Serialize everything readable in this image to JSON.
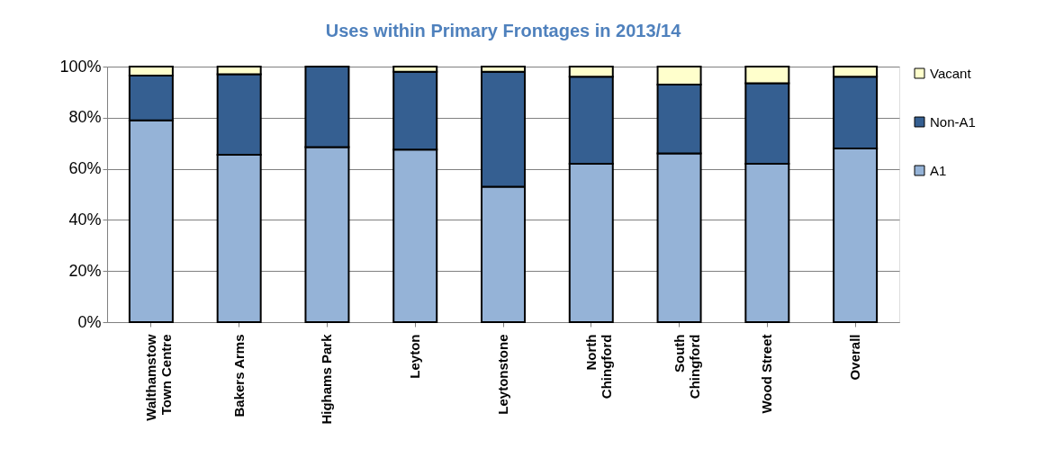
{
  "chart_data": {
    "type": "bar",
    "title": "Uses within Primary Frontages in 2013/14",
    "stacked": true,
    "categories": [
      "Walthamstow\nTown Centre",
      "Bakers Arms",
      "Highams Park",
      "Leyton",
      "Leytonstone",
      "North\nChingford",
      "South\nChingford",
      "Wood Street",
      "Overall"
    ],
    "series": [
      {
        "name": "A1",
        "color": "#95b3d7",
        "values": [
          79,
          65.5,
          68.5,
          67.5,
          53,
          62,
          66,
          62,
          68
        ]
      },
      {
        "name": "Non-A1",
        "color": "#355f91",
        "values": [
          17.5,
          31.5,
          31.5,
          30.5,
          45,
          34,
          27,
          31.5,
          28
        ]
      },
      {
        "name": "Vacant",
        "color": "#ffffcc",
        "values": [
          3.5,
          3,
          null,
          2,
          2,
          4,
          7,
          6.5,
          4
        ]
      }
    ],
    "ylim": [
      0,
      100
    ],
    "yticks": [
      {
        "value": 0,
        "label": "0%"
      },
      {
        "value": 20,
        "label": "20%"
      },
      {
        "value": 40,
        "label": "40%"
      },
      {
        "value": 60,
        "label": "60%"
      },
      {
        "value": 80,
        "label": "80%"
      },
      {
        "value": 100,
        "label": "100%"
      }
    ],
    "grid": "y",
    "legend": "right"
  }
}
